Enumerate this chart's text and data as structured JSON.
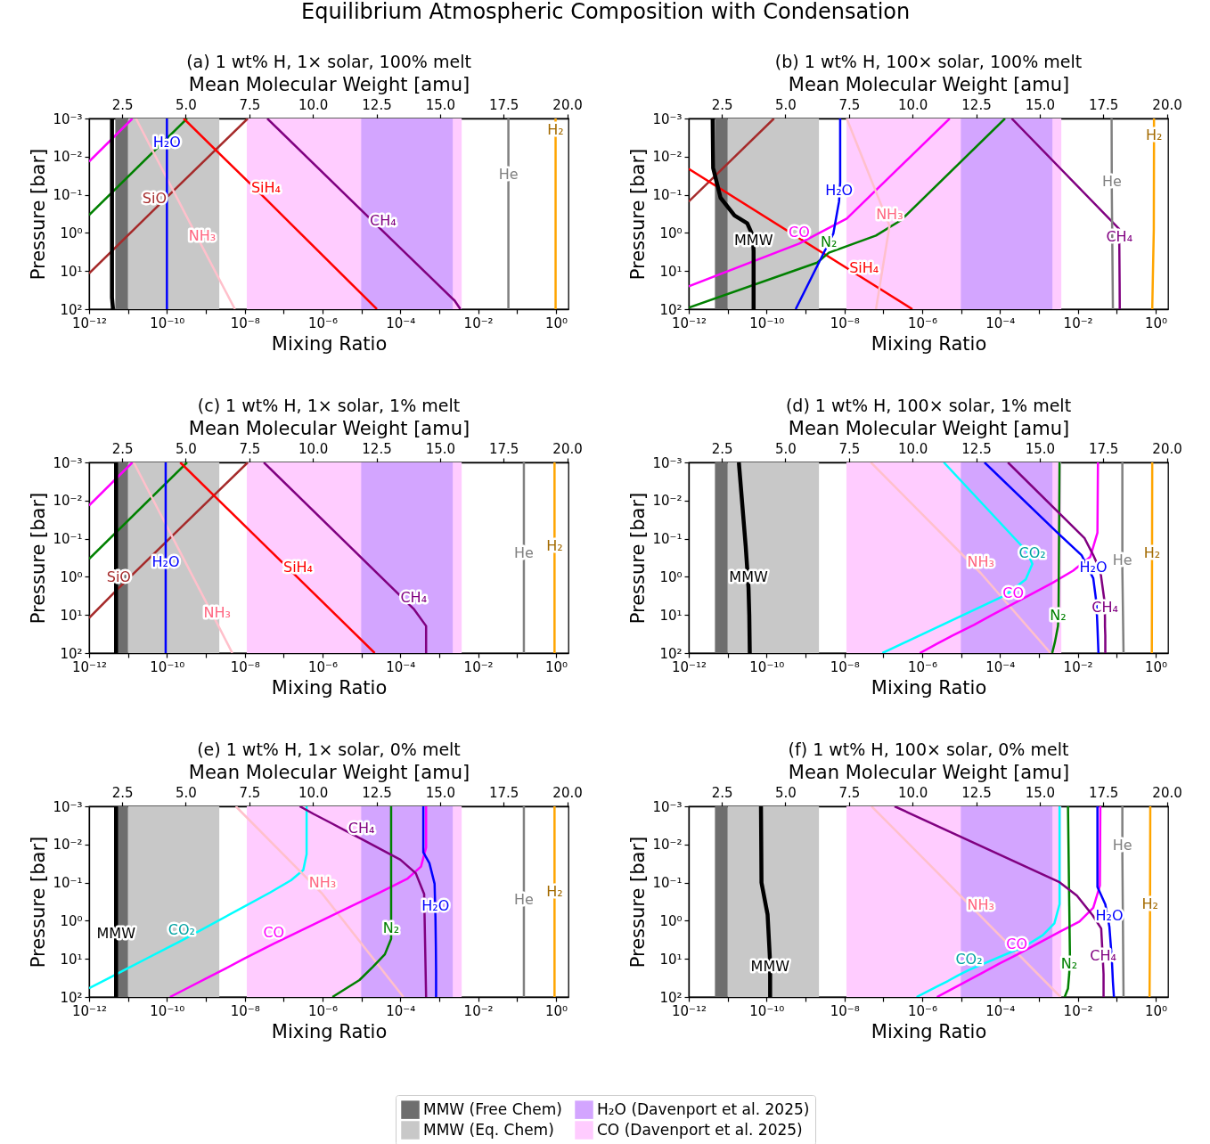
{
  "chart_data": [
    {
      "type": "line",
      "title": "(a) 1 wt% H, 1× solar, 100% melt",
      "annotations": [
        "Equilibrium Atmospheric Composition with Condensation"
      ],
      "xlabel": "Mixing Ratio",
      "ylabel": "Pressure [bar]",
      "x2label": "Mean Molecular Weight [amu]",
      "log": "xy",
      "xlim": [
        1e-12,
        2.1
      ],
      "ylim": [
        100,
        0.001
      ],
      "x2lim": [
        1.2,
        20.05
      ],
      "xticks": [
        {
          "value": 1e-12,
          "label": "10⁻¹²"
        },
        {
          "value": 1e-11,
          "label": null
        },
        {
          "value": 1e-10,
          "label": "10⁻¹⁰"
        },
        {
          "value": 1e-09,
          "label": null
        },
        {
          "value": 1e-08,
          "label": "10⁻⁸"
        },
        {
          "value": 1e-07,
          "label": null
        },
        {
          "value": 1e-06,
          "label": "10⁻⁶"
        },
        {
          "value": 1e-05,
          "label": null
        },
        {
          "value": 0.0001,
          "label": "10⁻⁴"
        },
        {
          "value": 0.001,
          "label": null
        },
        {
          "value": 0.01,
          "label": "10⁻²"
        },
        {
          "value": 0.1,
          "label": null
        },
        {
          "value": 1,
          "label": "10⁰"
        }
      ],
      "yticks": [
        {
          "value": 0.001,
          "label": "10⁻³"
        },
        {
          "value": 0.01,
          "label": "10⁻²"
        },
        {
          "value": 0.1,
          "label": "10⁻¹"
        },
        {
          "value": 1,
          "label": "10⁰"
        },
        {
          "value": 10,
          "label": "10¹"
        },
        {
          "value": 100,
          "label": "10²"
        }
      ],
      "x2ticks": [
        2.5,
        {
          "value": 5,
          "label": "5.0"
        },
        7.5,
        {
          "value": 10,
          "label": "10.0"
        },
        12.5,
        {
          "value": 15,
          "label": "15.0"
        },
        17.5,
        {
          "value": 20,
          "label": "20.0"
        }
      ],
      "legend": "bottom",
      "bands": [
        {
          "axis": "x2",
          "from": 2.23,
          "to": 2.73,
          "label": "MMW (Free Chem)",
          "color": "#6e6e6e"
        },
        {
          "axis": "x2",
          "from": 2.73,
          "to": 6.32,
          "label": "MMW (Eq. Chem)",
          "color": "#c8c8c8"
        },
        {
          "axis": "x2",
          "from": 11.9,
          "to": 15.5,
          "label": "H₂O (Davenport et al. 2025)",
          "color": "#d3a5ff"
        },
        {
          "axis": "x2",
          "from": 7.4,
          "to": 15.85,
          "label": "CO (Davenport et al. 2025)",
          "color": "#ffccff"
        }
      ],
      "series": [
        {
          "color": "#ff00ff",
          "x": [
            1e-12,
            1.3e-11
          ],
          "values": [
            0.0135,
            0.001
          ]
        },
        {
          "color": "#008000",
          "x": [
            1e-12,
            3.3e-10
          ],
          "values": [
            0.34,
            0.001
          ]
        },
        {
          "name": "SiO",
          "color": "#a52a2a",
          "x": [
            1e-12,
            4.8e-11,
            1.2e-08
          ],
          "values": [
            11.5,
            0.24,
            0.001
          ]
        },
        {
          "name": "NH₃",
          "color": "#ffc0cb",
          "x": [
            1.6e-11,
            8.1e-10,
            5.6e-09
          ],
          "values": [
            0.001,
            2.3,
            100
          ]
        },
        {
          "name": "H₂O",
          "color": "#0000ff",
          "x": [
            1e-10,
            1e-10,
            1e-10
          ],
          "values": [
            0.001,
            0.008,
            100
          ]
        },
        {
          "name": "SiH₄",
          "color": "#ff0000",
          "x": [
            2.7e-10,
            3.5e-08,
            2.5e-05
          ],
          "values": [
            0.001,
            0.13,
            100
          ]
        },
        {
          "name": "CH₄",
          "color": "#800080",
          "x": [
            3.8e-08,
            3.6e-05,
            0.0025,
            0.0035
          ],
          "values": [
            0.001,
            0.91,
            60,
            100
          ]
        },
        {
          "name": "He",
          "color": "#808080",
          "x": [
            0.06,
            0.06,
            0.06
          ],
          "values": [
            0.001,
            0.057,
            100
          ]
        },
        {
          "name": "H₂",
          "color": "#ffa500",
          "x": [
            0.98,
            0.98,
            0.98
          ],
          "values": [
            0.001,
            0.0039,
            100
          ]
        },
        {
          "color": "#000000",
          "axis": "x2",
          "x": [
            2.1,
            2.1,
            2.14
          ],
          "values": [
            0.001,
            50,
            100
          ]
        }
      ]
    },
    {
      "type": "line",
      "title": "(b) 1 wt% H, 100× solar, 100% melt",
      "xlabel": "Mixing Ratio",
      "ylabel": "Pressure [bar]",
      "x2label": "Mean Molecular Weight [amu]",
      "log": "xy",
      "xlim": [
        1e-12,
        2.1
      ],
      "ylim": [
        100,
        0.001
      ],
      "x2lim": [
        1.2,
        20.05
      ],
      "xticks": [
        {
          "value": 1e-12,
          "label": "10⁻¹²"
        },
        {
          "value": 1e-11,
          "label": null
        },
        {
          "value": 1e-10,
          "label": "10⁻¹⁰"
        },
        {
          "value": 1e-09,
          "label": null
        },
        {
          "value": 1e-08,
          "label": "10⁻⁸"
        },
        {
          "value": 1e-07,
          "label": null
        },
        {
          "value": 1e-06,
          "label": "10⁻⁶"
        },
        {
          "value": 1e-05,
          "label": null
        },
        {
          "value": 0.0001,
          "label": "10⁻⁴"
        },
        {
          "value": 0.001,
          "label": null
        },
        {
          "value": 0.01,
          "label": "10⁻²"
        },
        {
          "value": 0.1,
          "label": null
        },
        {
          "value": 1,
          "label": "10⁰"
        }
      ],
      "yticks": [
        {
          "value": 0.001,
          "label": "10⁻³"
        },
        {
          "value": 0.01,
          "label": "10⁻²"
        },
        {
          "value": 0.1,
          "label": "10⁻¹"
        },
        {
          "value": 1,
          "label": "10⁰"
        },
        {
          "value": 10,
          "label": "10¹"
        },
        {
          "value": 100,
          "label": "10²"
        }
      ],
      "x2ticks": [
        2.5,
        {
          "value": 5,
          "label": "5.0"
        },
        7.5,
        {
          "value": 10,
          "label": "10.0"
        },
        12.5,
        {
          "value": 15,
          "label": "15.0"
        },
        17.5,
        {
          "value": 20,
          "label": "20.0"
        }
      ],
      "bands": [
        {
          "axis": "x2",
          "from": 2.23,
          "to": 2.73,
          "color": "#6e6e6e"
        },
        {
          "axis": "x2",
          "from": 2.73,
          "to": 6.32,
          "color": "#c8c8c8"
        },
        {
          "axis": "x2",
          "from": 11.9,
          "to": 15.5,
          "color": "#d3a5ff"
        },
        {
          "axis": "x2",
          "from": 7.4,
          "to": 15.85,
          "color": "#ffccff"
        }
      ],
      "series": [
        {
          "color": "#a52a2a",
          "x": [
            1e-12,
            1.55e-10
          ],
          "values": [
            0.15,
            0.001
          ]
        },
        {
          "name": "SiH₄",
          "color": "#ff0000",
          "x": [
            1e-12,
            3.2e-08,
            5.6e-07
          ],
          "values": [
            0.021,
            16,
            100
          ]
        },
        {
          "name": "CO",
          "color": "#ff00ff",
          "x": [
            1e-12,
            6.9e-10,
            1.15e-08,
            5.1e-06
          ],
          "values": [
            25,
            1.9,
            0.42,
            0.001
          ]
        },
        {
          "name": "N₂",
          "color": "#008000",
          "x": [
            1e-12,
            2e-09,
            4e-09,
            6.5e-08,
            2.9e-07,
            0.000135
          ],
          "values": [
            91,
            6,
            3.3,
            1.17,
            0.46,
            0.001
          ]
        },
        {
          "name": "H₂O",
          "color": "#0000ff",
          "x": [
            5.6e-10,
            5.2e-09,
            7.3e-09,
            7.8e-09,
            7.8e-09
          ],
          "values": [
            100,
            1.05,
            0.15,
            0.047,
            0.001
          ]
        },
        {
          "name": "NH₃",
          "color": "#ffc0cb",
          "x": [
            1.15e-08,
            1.45e-07,
            6.5e-08
          ],
          "values": [
            0.001,
            0.65,
            100
          ]
        },
        {
          "name": "CH₄",
          "color": "#800080",
          "x": [
            0.0002,
            0.115,
            0.117,
            0.119,
            0.12
          ],
          "values": [
            0.001,
            0.78,
            2.4,
            20,
            100
          ]
        },
        {
          "name": "He",
          "color": "#808080",
          "x": [
            0.074,
            0.075,
            0.08
          ],
          "values": [
            0.001,
            0.087,
            100
          ]
        },
        {
          "name": "H₂",
          "color": "#ffa500",
          "x": [
            0.91,
            0.91,
            0.9,
            0.82
          ],
          "values": [
            0.001,
            0.0053,
            0.8,
            100
          ]
        },
        {
          "name": "MMW",
          "color": "#000000",
          "axis": "x2",
          "x": [
            2.14,
            2.16,
            2.45,
            3.0,
            3.5,
            3.72,
            3.75,
            3.75,
            3.75,
            3.75,
            3.75,
            3.75,
            3.75
          ],
          "values": [
            0.001,
            0.02,
            0.12,
            0.35,
            0.56,
            1.2,
            3,
            6,
            10,
            20,
            40,
            70,
            100
          ]
        }
      ]
    },
    {
      "type": "line",
      "title": "(c) 1 wt% H, 1× solar, 1% melt",
      "xlabel": "Mixing Ratio",
      "ylabel": "Pressure [bar]",
      "x2label": "Mean Molecular Weight [amu]",
      "log": "xy",
      "xlim": [
        1e-12,
        2.1
      ],
      "ylim": [
        100,
        0.001
      ],
      "x2lim": [
        1.2,
        20.05
      ],
      "xticks": [
        {
          "value": 1e-12,
          "label": "10⁻¹²"
        },
        {
          "value": 1e-11,
          "label": null
        },
        {
          "value": 1e-10,
          "label": "10⁻¹⁰"
        },
        {
          "value": 1e-09,
          "label": null
        },
        {
          "value": 1e-08,
          "label": "10⁻⁸"
        },
        {
          "value": 1e-07,
          "label": null
        },
        {
          "value": 1e-06,
          "label": "10⁻⁶"
        },
        {
          "value": 1e-05,
          "label": null
        },
        {
          "value": 0.0001,
          "label": "10⁻⁴"
        },
        {
          "value": 0.001,
          "label": null
        },
        {
          "value": 0.01,
          "label": "10⁻²"
        },
        {
          "value": 0.1,
          "label": null
        },
        {
          "value": 1,
          "label": "10⁰"
        }
      ],
      "yticks": [
        {
          "value": 0.001,
          "label": "10⁻³"
        },
        {
          "value": 0.01,
          "label": "10⁻²"
        },
        {
          "value": 0.1,
          "label": "10⁻¹"
        },
        {
          "value": 1,
          "label": "10⁰"
        },
        {
          "value": 10,
          "label": "10¹"
        },
        {
          "value": 100,
          "label": "10²"
        }
      ],
      "x2ticks": [
        2.5,
        {
          "value": 5,
          "label": "5.0"
        },
        7.5,
        {
          "value": 10,
          "label": "10.0"
        },
        12.5,
        {
          "value": 15,
          "label": "15.0"
        },
        17.5,
        {
          "value": 20,
          "label": "20.0"
        }
      ],
      "bands": [
        {
          "axis": "x2",
          "from": 2.23,
          "to": 2.73,
          "color": "#6e6e6e"
        },
        {
          "axis": "x2",
          "from": 2.73,
          "to": 6.32,
          "color": "#c8c8c8"
        },
        {
          "axis": "x2",
          "from": 11.9,
          "to": 15.5,
          "color": "#d3a5ff"
        },
        {
          "axis": "x2",
          "from": 7.4,
          "to": 15.85,
          "color": "#ffccff"
        }
      ],
      "series": [
        {
          "color": "#ff00ff",
          "x": [
            1e-12,
            1.3e-11
          ],
          "values": [
            0.0135,
            0.001
          ]
        },
        {
          "color": "#008000",
          "x": [
            1e-12,
            3.3e-10
          ],
          "values": [
            0.34,
            0.001
          ]
        },
        {
          "name": "SiO",
          "color": "#a52a2a",
          "x": [
            1e-12,
            5.8e-12,
            1.2e-08
          ],
          "values": [
            12,
            1.95,
            0.001
          ]
        },
        {
          "name": "NH₃",
          "color": "#ffc0cb",
          "x": [
            1.4e-11,
            1.95e-09,
            4.8e-09
          ],
          "values": [
            0.001,
            16.6,
            100
          ]
        },
        {
          "name": "H₂O",
          "color": "#0000ff",
          "x": [
            9.3e-11,
            9.3e-11,
            9.3e-11
          ],
          "values": [
            0.001,
            0.78,
            100
          ]
        },
        {
          "name": "SiH₄",
          "color": "#ff0000",
          "x": [
            2.2e-10,
            2.35e-07,
            2.2e-05
          ],
          "values": [
            0.001,
            1.07,
            100
          ]
        },
        {
          "name": "CH₄",
          "color": "#800080",
          "x": [
            3.1e-08,
            0.00022,
            0.00046,
            0.00046
          ],
          "values": [
            0.001,
            6.9,
            19.5,
            100
          ]
        },
        {
          "name": "He",
          "color": "#808080",
          "x": [
            0.15,
            0.15,
            0.15
          ],
          "values": [
            0.001,
            0.46,
            100
          ]
        },
        {
          "name": "H₂",
          "color": "#ffa500",
          "x": [
            0.92,
            0.92,
            0.92
          ],
          "values": [
            0.001,
            0.3,
            100
          ]
        },
        {
          "color": "#000000",
          "axis": "x2",
          "x": [
            2.26,
            2.26
          ],
          "values": [
            0.001,
            100
          ]
        }
      ]
    },
    {
      "type": "line",
      "title": "(d) 1 wt% H, 100× solar, 1% melt",
      "xlabel": "Mixing Ratio",
      "ylabel": "Pressure [bar]",
      "x2label": "Mean Molecular Weight [amu]",
      "log": "xy",
      "xlim": [
        1e-12,
        2.1
      ],
      "ylim": [
        100,
        0.001
      ],
      "x2lim": [
        1.2,
        20.05
      ],
      "xticks": [
        {
          "value": 1e-12,
          "label": "10⁻¹²"
        },
        {
          "value": 1e-11,
          "label": null
        },
        {
          "value": 1e-10,
          "label": "10⁻¹⁰"
        },
        {
          "value": 1e-09,
          "label": null
        },
        {
          "value": 1e-08,
          "label": "10⁻⁸"
        },
        {
          "value": 1e-07,
          "label": null
        },
        {
          "value": 1e-06,
          "label": "10⁻⁶"
        },
        {
          "value": 1e-05,
          "label": null
        },
        {
          "value": 0.0001,
          "label": "10⁻⁴"
        },
        {
          "value": 0.001,
          "label": null
        },
        {
          "value": 0.01,
          "label": "10⁻²"
        },
        {
          "value": 0.1,
          "label": null
        },
        {
          "value": 1,
          "label": "10⁰"
        }
      ],
      "yticks": [
        {
          "value": 0.001,
          "label": "10⁻³"
        },
        {
          "value": 0.01,
          "label": "10⁻²"
        },
        {
          "value": 0.1,
          "label": "10⁻¹"
        },
        {
          "value": 1,
          "label": "10⁰"
        },
        {
          "value": 10,
          "label": "10¹"
        },
        {
          "value": 100,
          "label": "10²"
        }
      ],
      "x2ticks": [
        2.5,
        {
          "value": 5,
          "label": "5.0"
        },
        7.5,
        {
          "value": 10,
          "label": "10.0"
        },
        12.5,
        {
          "value": 15,
          "label": "15.0"
        },
        17.5,
        {
          "value": 20,
          "label": "20.0"
        }
      ],
      "bands": [
        {
          "axis": "x2",
          "from": 2.23,
          "to": 2.73,
          "color": "#6e6e6e"
        },
        {
          "axis": "x2",
          "from": 2.73,
          "to": 6.32,
          "color": "#c8c8c8"
        },
        {
          "axis": "x2",
          "from": 11.9,
          "to": 15.5,
          "color": "#d3a5ff"
        },
        {
          "axis": "x2",
          "from": 7.4,
          "to": 15.85,
          "color": "#ffccff"
        }
      ],
      "series": [
        {
          "name": "NH₃",
          "color": "#ffc0cb",
          "x": [
            4.8e-08,
            3.2e-05,
            0.002
          ],
          "values": [
            0.001,
            0.8,
            100
          ]
        },
        {
          "name": "CO₂",
          "color": "#00ffff",
          "x": [
            3.6e-06,
            0.0005,
            0.00068,
            0.00046,
            0.00014,
            9.5e-08
          ],
          "values": [
            0.001,
            0.22,
            0.46,
            1.17,
            3,
            100
          ]
        },
        {
          "name": "CO",
          "color": "#ff00ff",
          "x": [
            0.033,
            0.032,
            0.021,
            0.0076,
            0.0022,
            0.00022,
            6e-05,
            2.2e-05,
            6e-06,
            2.5e-06,
            8.7e-07
          ],
          "values": [
            0.001,
            0.07,
            0.3,
            0.69,
            1.45,
            5.1,
            10.2,
            18,
            35,
            56,
            100
          ]
        },
        {
          "name": "N₂",
          "color": "#008000",
          "x": [
            0.0034,
            0.0032,
            0.0031,
            0.0026,
            0.0022
          ],
          "values": [
            0.001,
            10,
            19.5,
            50,
            100
          ]
        },
        {
          "name": "H₂O",
          "color": "#0000ff",
          "x": [
            4e-05,
            0.003,
            0.0125,
            0.025,
            0.03,
            0.032,
            0.034
          ],
          "values": [
            0.001,
            0.07,
            0.27,
            1.1,
            4.6,
            20,
            100
          ]
        },
        {
          "name": "CH₄",
          "color": "#800080",
          "x": [
            0.00016,
            0.015,
            0.025,
            0.038,
            0.049,
            0.05,
            0.05,
            0.051,
            0.051,
            0.051,
            0.051
          ],
          "values": [
            0.001,
            0.098,
            0.27,
            0.7,
            4.6,
            12.3,
            20,
            35,
            50,
            70,
            100
          ]
        },
        {
          "name": "He",
          "color": "#808080",
          "x": [
            0.14,
            0.14,
            0.15
          ],
          "values": [
            0.001,
            0.7,
            100
          ]
        },
        {
          "name": "H₂",
          "color": "#ffa500",
          "x": [
            0.82,
            0.81,
            0.8
          ],
          "values": [
            0.001,
            0.46,
            100
          ]
        },
        {
          "name": "MMW",
          "color": "#000000",
          "axis": "x2",
          "x": [
            3.17,
            3.44,
            3.55,
            3.58,
            3.6
          ],
          "values": [
            0.001,
            0.16,
            1.95,
            10,
            100
          ]
        }
      ]
    },
    {
      "type": "line",
      "title": "(e) 1 wt% H, 1× solar, 0% melt",
      "xlabel": "Mixing Ratio",
      "ylabel": "Pressure [bar]",
      "x2label": "Mean Molecular Weight [amu]",
      "log": "xy",
      "xlim": [
        1e-12,
        2.1
      ],
      "ylim": [
        100,
        0.001
      ],
      "x2lim": [
        1.2,
        20.05
      ],
      "xticks": [
        {
          "value": 1e-12,
          "label": "10⁻¹²"
        },
        {
          "value": 1e-11,
          "label": null
        },
        {
          "value": 1e-10,
          "label": "10⁻¹⁰"
        },
        {
          "value": 1e-09,
          "label": null
        },
        {
          "value": 1e-08,
          "label": "10⁻⁸"
        },
        {
          "value": 1e-07,
          "label": null
        },
        {
          "value": 1e-06,
          "label": "10⁻⁶"
        },
        {
          "value": 1e-05,
          "label": null
        },
        {
          "value": 0.0001,
          "label": "10⁻⁴"
        },
        {
          "value": 0.001,
          "label": null
        },
        {
          "value": 0.01,
          "label": "10⁻²"
        },
        {
          "value": 0.1,
          "label": null
        },
        {
          "value": 1,
          "label": "10⁰"
        }
      ],
      "yticks": [
        {
          "value": 0.001,
          "label": "10⁻³"
        },
        {
          "value": 0.01,
          "label": "10⁻²"
        },
        {
          "value": 0.1,
          "label": "10⁻¹"
        },
        {
          "value": 1,
          "label": "10⁰"
        },
        {
          "value": 10,
          "label": "10¹"
        },
        {
          "value": 100,
          "label": "10²"
        }
      ],
      "x2ticks": [
        2.5,
        {
          "value": 5,
          "label": "5.0"
        },
        7.5,
        {
          "value": 10,
          "label": "10.0"
        },
        12.5,
        {
          "value": 15,
          "label": "15.0"
        },
        17.5,
        {
          "value": 20,
          "label": "20.0"
        }
      ],
      "bands": [
        {
          "axis": "x2",
          "from": 2.23,
          "to": 2.73,
          "color": "#6e6e6e"
        },
        {
          "axis": "x2",
          "from": 2.73,
          "to": 6.32,
          "color": "#c8c8c8"
        },
        {
          "axis": "x2",
          "from": 11.9,
          "to": 15.5,
          "color": "#d3a5ff"
        },
        {
          "axis": "x2",
          "from": 7.4,
          "to": 15.85,
          "color": "#ffccff"
        }
      ],
      "series": [
        {
          "name": "CO₂",
          "color": "#00ffff",
          "x": [
            3.9e-07,
            3.9e-07,
            3.2e-07,
            1.55e-07,
            4.6e-08,
            2.4e-10,
            1e-10,
            3.2e-11,
            1e-11,
            3.2e-12,
            1e-12
          ],
          "values": [
            0.001,
            0.018,
            0.047,
            0.087,
            0.18,
            3.3,
            5.2,
            9.5,
            17.5,
            32,
            59
          ]
        },
        {
          "name": "NH₃",
          "color": "#ffc0cb",
          "x": [
            5.9e-09,
            1e-06,
            0.00012
          ],
          "values": [
            0.001,
            0.2,
            100
          ]
        },
        {
          "name": "CO",
          "color": "#ff00ff",
          "x": [
            0.00046,
            0.00046,
            0.00034,
            0.00015,
            3e-05,
            5.6e-08,
            1e-08,
            3.2e-09,
            1e-09,
            3.2e-10,
            1.2e-10
          ],
          "values": [
            0.001,
            0.012,
            0.038,
            0.08,
            0.18,
            4,
            9.7,
            18,
            33,
            60,
            100
          ]
        },
        {
          "name": "N₂",
          "color": "#008000",
          "x": [
            5.8e-05,
            5.8e-05,
            5.8e-05,
            5.8e-05,
            5.8e-05,
            4e-05,
            2e-05,
            8.9e-06,
            1.8e-06
          ],
          "values": [
            0.001,
            0.01,
            0.1,
            1,
            3,
            7.6,
            16,
            36,
            100
          ]
        },
        {
          "name": "CH₄",
          "color": "#800080",
          "x": [
            2.6e-07,
            6e-07,
            1.5e-06,
            4e-06,
            1e-05,
            0.0001,
            0.00025,
            0.00041,
            0.00046
          ],
          "values": [
            0.001,
            0.0016,
            0.0026,
            0.0044,
            0.0072,
            0.025,
            0.057,
            0.2,
            100
          ]
        },
        {
          "name": "H₂O",
          "color": "#0000ff",
          "x": [
            0.00039,
            0.00039,
            0.00056,
            0.00076,
            0.0008,
            0.00082,
            0.00083,
            0.00083,
            0.00083
          ],
          "values": [
            0.001,
            0.016,
            0.031,
            0.107,
            0.81,
            5,
            20,
            50,
            100
          ]
        },
        {
          "name": "He",
          "color": "#808080",
          "x": [
            0.15,
            0.15,
            0.15
          ],
          "values": [
            0.001,
            0.53,
            100
          ]
        },
        {
          "name": "H₂",
          "color": "#ffa500",
          "x": [
            0.92,
            0.92,
            0.92
          ],
          "values": [
            0.001,
            0.34,
            100
          ]
        },
        {
          "name": "MMW",
          "color": "#000000",
          "axis": "x2",
          "x": [
            2.26,
            2.26,
            2.26
          ],
          "values": [
            0.001,
            4.1,
            100
          ]
        }
      ]
    },
    {
      "type": "line",
      "title": "(f) 1 wt% H, 100× solar, 0% melt",
      "xlabel": "Mixing Ratio",
      "ylabel": "Pressure [bar]",
      "x2label": "Mean Molecular Weight [amu]",
      "log": "xy",
      "xlim": [
        1e-12,
        2.1
      ],
      "ylim": [
        100,
        0.001
      ],
      "x2lim": [
        1.2,
        20.05
      ],
      "xticks": [
        {
          "value": 1e-12,
          "label": "10⁻¹²"
        },
        {
          "value": 1e-11,
          "label": null
        },
        {
          "value": 1e-10,
          "label": "10⁻¹⁰"
        },
        {
          "value": 1e-09,
          "label": null
        },
        {
          "value": 1e-08,
          "label": "10⁻⁸"
        },
        {
          "value": 1e-07,
          "label": null
        },
        {
          "value": 1e-06,
          "label": "10⁻⁶"
        },
        {
          "value": 1e-05,
          "label": null
        },
        {
          "value": 0.0001,
          "label": "10⁻⁴"
        },
        {
          "value": 0.001,
          "label": null
        },
        {
          "value": 0.01,
          "label": "10⁻²"
        },
        {
          "value": 0.1,
          "label": null
        },
        {
          "value": 1,
          "label": "10⁰"
        }
      ],
      "yticks": [
        {
          "value": 0.001,
          "label": "10⁻³"
        },
        {
          "value": 0.01,
          "label": "10⁻²"
        },
        {
          "value": 0.1,
          "label": "10⁻¹"
        },
        {
          "value": 1,
          "label": "10⁰"
        },
        {
          "value": 10,
          "label": "10¹"
        },
        {
          "value": 100,
          "label": "10²"
        }
      ],
      "x2ticks": [
        2.5,
        {
          "value": 5,
          "label": "5.0"
        },
        7.5,
        {
          "value": 10,
          "label": "10.0"
        },
        12.5,
        {
          "value": 15,
          "label": "15.0"
        },
        17.5,
        {
          "value": 20,
          "label": "20.0"
        }
      ],
      "bands": [
        {
          "axis": "x2",
          "from": 2.23,
          "to": 2.73,
          "color": "#6e6e6e"
        },
        {
          "axis": "x2",
          "from": 2.73,
          "to": 6.32,
          "color": "#c8c8c8"
        },
        {
          "axis": "x2",
          "from": 11.9,
          "to": 15.5,
          "color": "#d3a5ff"
        },
        {
          "axis": "x2",
          "from": 7.4,
          "to": 15.85,
          "color": "#ffccff"
        }
      ],
      "series": [
        {
          "name": "NH₃",
          "color": "#ffc0cb",
          "x": [
            5e-08,
            3.2e-05,
            0.0036
          ],
          "values": [
            0.001,
            0.76,
            100
          ]
        },
        {
          "name": "CO₂",
          "color": "#00ffff",
          "x": [
            0.0034,
            0.0034,
            0.0025,
            0.00126,
            0.00045,
            1.6e-05,
            8.5e-06,
            4.6e-06,
            2.5e-06,
            1.35e-06,
            7.2e-07
          ],
          "values": [
            0.001,
            0.37,
            1.17,
            2.4,
            4.6,
            19.5,
            27,
            38,
            52,
            72,
            100
          ]
        },
        {
          "name": "CO",
          "color": "#ff00ff",
          "x": [
            0.038,
            0.037,
            0.025,
            0.011,
            0.0034,
            0.00027,
            0.0001,
            3.2e-05,
            1e-05,
            5e-06,
            2.4e-06
          ],
          "values": [
            0.001,
            0.12,
            0.46,
            1.05,
            1.95,
            7.8,
            13,
            24.5,
            46,
            67,
            100
          ]
        },
        {
          "name": "N₂",
          "color": "#008000",
          "x": [
            0.0056,
            0.0063,
            0.006,
            0.0056,
            0.0046
          ],
          "values": [
            0.001,
            10.5,
            26,
            60,
            100
          ]
        },
        {
          "name": "CH₄",
          "color": "#800080",
          "x": [
            1.95e-07,
            0.0034,
            0.0095,
            0.024,
            0.04,
            0.045,
            0.046,
            0.046,
            0.046,
            0.046,
            0.046
          ],
          "values": [
            0.001,
            0.098,
            0.22,
            0.72,
            1.6,
            16,
            25,
            40,
            55,
            75,
            100
          ]
        },
        {
          "name": "H₂O",
          "color": "#0000ff",
          "x": [
            0.032,
            0.032,
            0.051,
            0.065,
            0.075,
            0.08,
            0.085
          ],
          "values": [
            0.001,
            0.13,
            0.37,
            1.45,
            10,
            40,
            100
          ]
        },
        {
          "name": "He",
          "color": "#808080",
          "x": [
            0.14,
            0.14,
            0.15
          ],
          "values": [
            0.001,
            0.02,
            100
          ]
        },
        {
          "name": "H₂",
          "color": "#ffa500",
          "x": [
            0.73,
            0.72,
            0.7
          ],
          "values": [
            0.001,
            0.7,
            100
          ]
        },
        {
          "name": "MMW",
          "color": "#000000",
          "axis": "x2",
          "x": [
            4.04,
            4.06,
            4.3,
            4.4,
            4.4,
            4.4,
            4.4,
            4.4,
            4.4
          ],
          "values": [
            0.001,
            0.1,
            0.69,
            12.6,
            30,
            50,
            70,
            85,
            100
          ]
        }
      ]
    }
  ]
}
